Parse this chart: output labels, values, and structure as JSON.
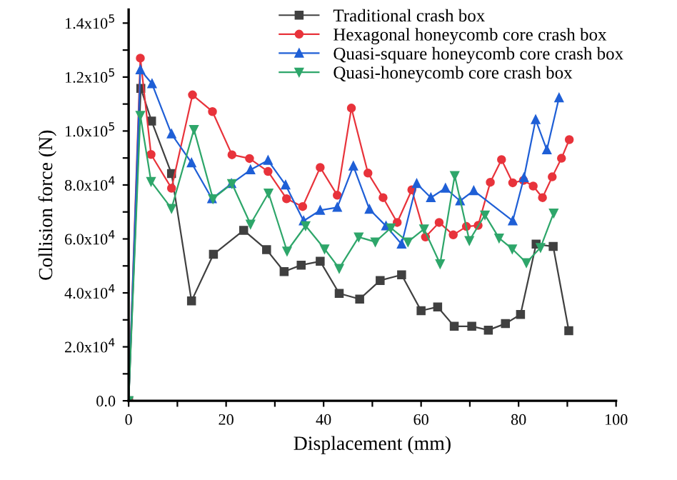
{
  "chart_data": {
    "type": "line",
    "xlabel": "Displacement (mm)",
    "ylabel": "Collision force (N)",
    "xlim": [
      0,
      100
    ],
    "ylim": [
      0,
      145000
    ],
    "xticks": [
      0,
      {
        "value": 10,
        "label": null
      },
      20,
      {
        "value": 30,
        "label": null
      },
      40,
      {
        "value": 50,
        "label": null
      },
      60,
      {
        "value": 70,
        "label": null
      },
      80,
      {
        "value": 90,
        "label": null
      },
      100
    ],
    "yticks": [
      {
        "value": 0,
        "label": "0.0"
      },
      {
        "value": 10000,
        "label": null
      },
      {
        "value": 20000,
        "label": "2.0x10$^{4}$"
      },
      {
        "value": 30000,
        "label": null
      },
      {
        "value": 40000,
        "label": "4.0x10$^{4}$"
      },
      {
        "value": 50000,
        "label": null
      },
      {
        "value": 60000,
        "label": "6.0x10$^{4}$"
      },
      {
        "value": 70000,
        "label": null
      },
      {
        "value": 80000,
        "label": "8.0x10$^{4}$"
      },
      {
        "value": 90000,
        "label": null
      },
      {
        "value": 100000,
        "label": "1.0x10$^{5}$"
      },
      {
        "value": 110000,
        "label": null
      },
      {
        "value": 120000,
        "label": "1.2x10$^{5}$"
      },
      {
        "value": 130000,
        "label": null
      },
      {
        "value": 140000,
        "label": "1.4x10$^{5}$"
      }
    ],
    "grid": false,
    "legend": "top right",
    "line_style": "solid",
    "series": [
      {
        "name": "Traditional crash box",
        "color": "#404040",
        "marker": "square",
        "x": [
          0,
          2.5,
          4.7,
          8.8,
          12.9,
          17.4,
          23.6,
          28.3,
          31.9,
          35.4,
          39.3,
          43.2,
          47.4,
          51.6,
          56.0,
          60.0,
          63.4,
          66.8,
          70.4,
          73.8,
          77.3,
          80.4,
          83.6,
          87.1,
          90.3
        ],
        "values": [
          0,
          115800,
          103700,
          84200,
          37000,
          54300,
          63200,
          56000,
          47900,
          50300,
          51700,
          39800,
          37700,
          44600,
          46700,
          33400,
          34800,
          27600,
          27600,
          26200,
          28600,
          32000,
          58100,
          57200,
          26000
        ]
      },
      {
        "name": "Hexagonal honeycomb core crash box",
        "color": "#e8333b",
        "marker": "circle",
        "x": [
          0,
          2.4,
          4.6,
          8.8,
          13.1,
          17.2,
          21.2,
          24.8,
          28.6,
          32.4,
          35.7,
          39.3,
          42.8,
          45.7,
          49.1,
          52.2,
          55.1,
          58.1,
          60.9,
          63.7,
          66.6,
          69.3,
          71.7,
          74.2,
          76.5,
          78.8,
          81.0,
          83.0,
          84.9,
          86.9,
          88.8,
          90.4
        ],
        "values": [
          0,
          127000,
          91300,
          78800,
          113400,
          107200,
          91200,
          89800,
          85000,
          74900,
          72000,
          86500,
          76200,
          108500,
          84400,
          75300,
          66100,
          78200,
          60700,
          66100,
          61500,
          64600,
          65000,
          81000,
          89400,
          80800,
          81700,
          79600,
          75300,
          83000,
          89900,
          96800
        ]
      },
      {
        "name": "Quasi-square honeycomb core crash box",
        "color": "#1f5fd6",
        "marker": "triangle",
        "x": [
          0,
          2.4,
          4.8,
          8.8,
          12.9,
          17.1,
          21.1,
          25.0,
          28.6,
          32.2,
          35.9,
          39.3,
          42.8,
          46.1,
          49.4,
          52.8,
          56.0,
          59.1,
          62.0,
          65.0,
          68.0,
          70.8,
          78.8,
          81.1,
          83.5,
          85.8,
          88.3
        ],
        "values": [
          0,
          122700,
          117500,
          98900,
          88200,
          74900,
          80500,
          85600,
          89100,
          80000,
          66700,
          70600,
          71700,
          87000,
          71000,
          64800,
          58100,
          80500,
          75300,
          78800,
          74100,
          77900,
          66700,
          82700,
          104200,
          93000,
          112300
        ]
      },
      {
        "name": "Quasi-honeycomb core crash box",
        "color": "#2ea66a",
        "marker": "triangle_down",
        "x": [
          0,
          2.4,
          4.6,
          8.8,
          13.4,
          17.3,
          21.2,
          25.0,
          28.7,
          32.5,
          36.3,
          40.2,
          43.2,
          47.2,
          50.6,
          53.8,
          57.3,
          60.6,
          63.9,
          66.9,
          69.9,
          73.1,
          76.0,
          78.7,
          81.6,
          84.5,
          87.2
        ],
        "values": [
          0,
          105800,
          81300,
          71300,
          100600,
          74900,
          80500,
          65500,
          77000,
          55500,
          64900,
          56300,
          49100,
          60700,
          58900,
          64100,
          58900,
          63700,
          50800,
          83500,
          59400,
          68900,
          60300,
          56300,
          51200,
          56800,
          69600
        ]
      }
    ]
  }
}
